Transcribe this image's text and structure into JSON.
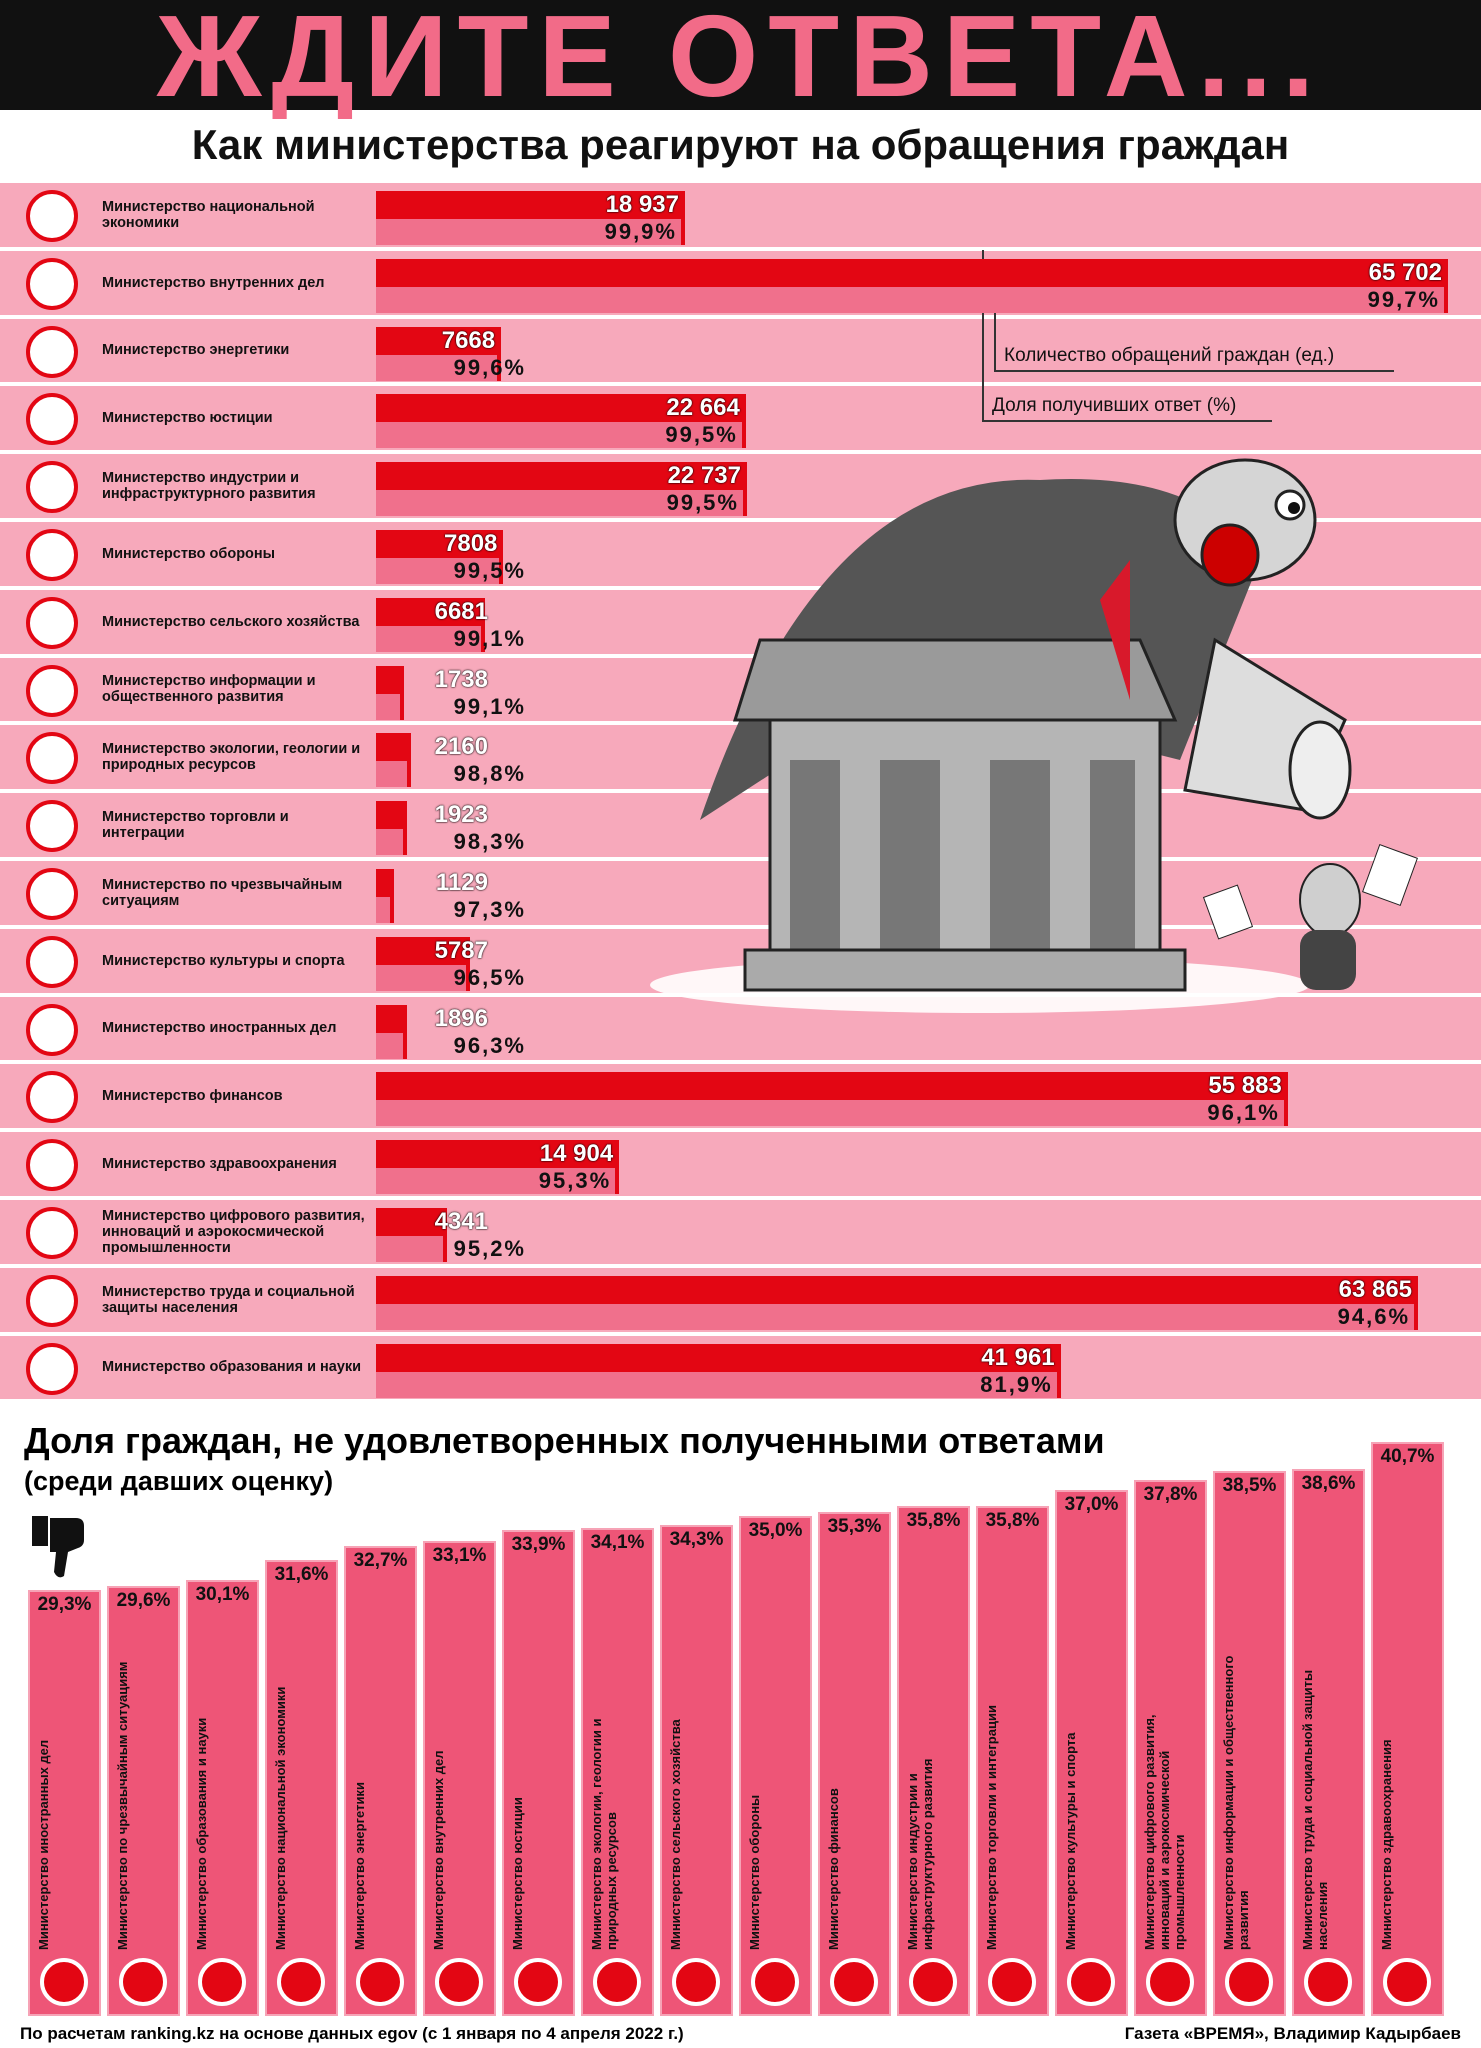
{
  "chart_data": [
    {
      "type": "hbar",
      "title": "ЖДИТЕ ОТВЕТА...",
      "subtitle": "Как министерства реагируют на обращения граждан",
      "categories": [
        "Министерство национальной экономики",
        "Министерство внутренних дел",
        "Министерство энергетики",
        "Министерство юстиции",
        "Министерство индустрии и инфраструктурного развития",
        "Министерство обороны",
        "Министерство сельского хозяйства",
        "Министерство информации и общественного развития",
        "Министерство экологии, геологии и природных ресурсов",
        "Министерство торговли и интеграции",
        "Министерство по чрезвычайным ситуациям",
        "Министерство культуры и спорта",
        "Министерство иностранных дел",
        "Министерство финансов",
        "Министерство здравоохранения",
        "Министерство цифрового развития, инноваций и аэрокосмической промышленности",
        "Министерство труда и социальной защиты населения",
        "Министерство образования и науки"
      ],
      "series": [
        {
          "name": "Количество обращений граждан (ед.)",
          "color": "#e30613",
          "values": [
            18937,
            65702,
            7668,
            22664,
            22737,
            7808,
            6681,
            1738,
            2160,
            1923,
            1129,
            5787,
            1896,
            55883,
            14904,
            4341,
            63865,
            41961
          ],
          "value_labels": [
            "18 937",
            "65 702",
            "7668",
            "22 664",
            "22 737",
            "7808",
            "6681",
            "1738",
            "2160",
            "1923",
            "1129",
            "5787",
            "1896",
            "55 883",
            "14 904",
            "4341",
            "63 865",
            "41 961"
          ]
        },
        {
          "name": "Доля получивших ответ (%)",
          "color": "#f0708c",
          "values": [
            99.9,
            99.7,
            99.6,
            99.5,
            99.5,
            99.5,
            99.1,
            99.1,
            98.8,
            98.3,
            97.3,
            96.5,
            96.3,
            96.1,
            95.3,
            95.2,
            94.6,
            81.9
          ],
          "value_labels": [
            "99,9%",
            "99,7%",
            "99,6%",
            "99,5%",
            "99,5%",
            "99,5%",
            "99,1%",
            "99,1%",
            "98,8%",
            "98,3%",
            "97,3%",
            "96,5%",
            "96,3%",
            "96,1%",
            "95,3%",
            "95,2%",
            "94,6%",
            "81,9%"
          ]
        }
      ]
    },
    {
      "type": "vbar",
      "title": "Доля граждан, не удовлетворенных полученными ответами",
      "subtitle": "(среди давших оценку)",
      "color": "#ee5577",
      "categories": [
        "Министерство иностранных дел",
        "Министерство по чрезвычайным ситуациям",
        "Министерство образования и науки",
        "Министерство национальной экономики",
        "Министерство энергетики",
        "Министерство внутренних дел",
        "Министерство юстиции",
        "Министерство экологии, геологии и природных ресурсов",
        "Министерство сельского хозяйства",
        "Министерство обороны",
        "Министерство финансов",
        "Министерство индустрии и инфраструктурного развития",
        "Министерство торговли и интеграции",
        "Министерство культуры и спорта",
        "Министерство цифрового развития, инноваций и аэрокосмической промышленности",
        "Министерство информации и общественного развития",
        "Министерство труда и социальной защиты населения",
        "Министерство здравоохранения"
      ],
      "values": [
        29.3,
        29.6,
        30.1,
        31.6,
        32.7,
        33.1,
        33.9,
        34.1,
        34.3,
        35.0,
        35.3,
        35.8,
        35.8,
        37.0,
        37.8,
        38.5,
        38.6,
        40.7
      ],
      "value_labels": [
        "29,3%",
        "29,6%",
        "30,1%",
        "31,6%",
        "32,7%",
        "33,1%",
        "33,9%",
        "34,1%",
        "34,3%",
        "35,0%",
        "35,3%",
        "35,8%",
        "35,8%",
        "37,0%",
        "37,8%",
        "38,5%",
        "38,6%",
        "40,7%"
      ]
    }
  ],
  "footer": {
    "source": "По расчетам ranking.kz на основе данных egov (с 1 января по 4 апреля 2022 г.)",
    "credit": "Газета «ВРЕМЯ», Владимир Кадырбаев"
  }
}
